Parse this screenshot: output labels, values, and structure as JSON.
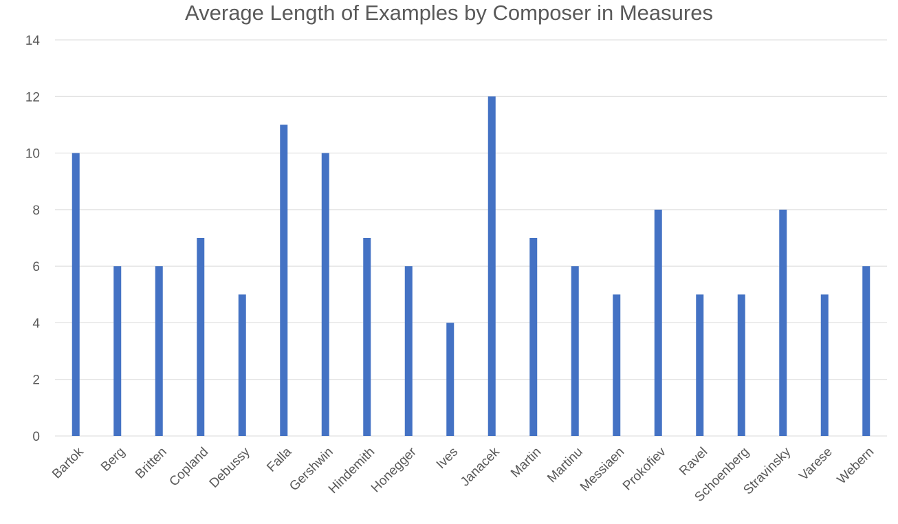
{
  "chart_data": {
    "type": "bar",
    "title": "Average Length of Examples by Composer in Measures",
    "xlabel": "",
    "ylabel": "",
    "categories": [
      "Bartok",
      "Berg",
      "Britten",
      "Copland",
      "Debussy",
      "Falla",
      "Gershwin",
      "Hindemith",
      "Honegger",
      "Ives",
      "Janacek",
      "Martin",
      "Martinu",
      "Messiaen",
      "Prokofiev",
      "Ravel",
      "Schoenberg",
      "Stravinsky",
      "Varese",
      "Webern"
    ],
    "values": [
      10,
      6,
      6,
      7,
      5,
      11,
      10,
      7,
      6,
      4,
      12,
      7,
      6,
      5,
      8,
      5,
      5,
      8,
      5,
      6
    ],
    "ylim": [
      0,
      14
    ],
    "yticks": [
      0,
      2,
      4,
      6,
      8,
      10,
      12,
      14
    ],
    "grid": true,
    "legend": "none",
    "colors": {
      "bar": "#4472C4",
      "grid": "#D9D9D9",
      "text": "#595959"
    }
  }
}
